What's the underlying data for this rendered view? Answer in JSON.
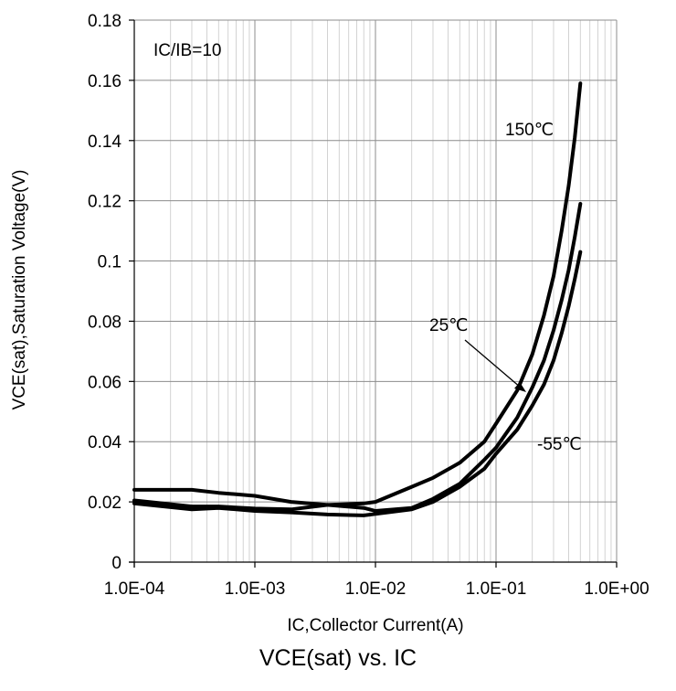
{
  "chart_data": {
    "type": "line",
    "title": "VCE(sat) vs. IC",
    "xlabel": "IC,Collector Current(A)",
    "ylabel": "VCE(sat),Saturation Voltage(V)",
    "x_scale": "log",
    "xlim": [
      0.0001,
      1.0
    ],
    "ylim": [
      0,
      0.18
    ],
    "x_ticks": [
      0.0001,
      0.001,
      0.01,
      0.1,
      1.0
    ],
    "x_tick_labels": [
      "1.0E-04",
      "1.0E-03",
      "1.0E-02",
      "1.0E-01",
      "1.0E+00"
    ],
    "y_ticks": [
      0,
      0.02,
      0.04,
      0.06,
      0.08,
      0.1,
      0.12,
      0.14,
      0.16,
      0.18
    ],
    "y_tick_labels": [
      "0",
      "0.02",
      "0.04",
      "0.06",
      "0.08",
      "0.1",
      "0.12",
      "0.14",
      "0.16",
      "0.18"
    ],
    "grid": true,
    "annotations": [
      {
        "text": "IC/IB=10"
      },
      {
        "text": "150℃"
      },
      {
        "text": "25℃"
      },
      {
        "text": "-55℃"
      }
    ],
    "series": [
      {
        "name": "150℃",
        "x": [
          0.0001,
          0.0003,
          0.0005,
          0.001,
          0.002,
          0.004,
          0.008,
          0.01,
          0.02,
          0.03,
          0.05,
          0.08,
          0.1,
          0.15,
          0.2,
          0.25,
          0.3,
          0.35,
          0.4,
          0.45,
          0.5
        ],
        "y": [
          0.0205,
          0.0185,
          0.0185,
          0.0178,
          0.0175,
          0.019,
          0.0195,
          0.02,
          0.025,
          0.028,
          0.033,
          0.04,
          0.046,
          0.057,
          0.069,
          0.082,
          0.095,
          0.11,
          0.125,
          0.141,
          0.159
        ]
      },
      {
        "name": "25℃",
        "x": [
          0.0001,
          0.0003,
          0.0005,
          0.001,
          0.002,
          0.004,
          0.008,
          0.01,
          0.02,
          0.03,
          0.05,
          0.08,
          0.1,
          0.15,
          0.2,
          0.25,
          0.3,
          0.35,
          0.4,
          0.45,
          0.5
        ],
        "y": [
          0.024,
          0.024,
          0.023,
          0.022,
          0.02,
          0.019,
          0.018,
          0.017,
          0.018,
          0.021,
          0.026,
          0.034,
          0.038,
          0.048,
          0.058,
          0.067,
          0.077,
          0.087,
          0.097,
          0.108,
          0.119
        ]
      },
      {
        "name": "-55℃",
        "x": [
          0.0001,
          0.0003,
          0.0005,
          0.001,
          0.002,
          0.004,
          0.008,
          0.01,
          0.02,
          0.03,
          0.05,
          0.08,
          0.1,
          0.15,
          0.2,
          0.25,
          0.3,
          0.35,
          0.4,
          0.45,
          0.5
        ],
        "y": [
          0.0195,
          0.0175,
          0.018,
          0.017,
          0.0165,
          0.0158,
          0.0155,
          0.016,
          0.0175,
          0.02,
          0.025,
          0.031,
          0.036,
          0.044,
          0.052,
          0.059,
          0.067,
          0.076,
          0.085,
          0.094,
          0.103
        ]
      }
    ]
  }
}
